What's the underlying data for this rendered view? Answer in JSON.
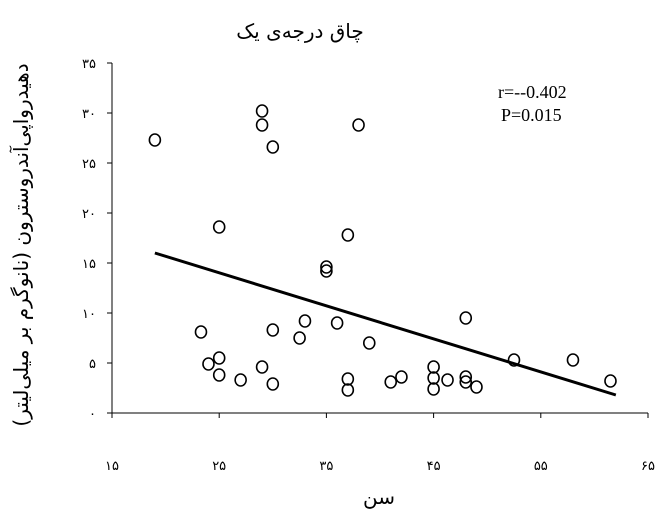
{
  "chart_data": {
    "type": "scatter",
    "title": "چاق درجه‌ی یک",
    "xlabel": "سن",
    "ylabel": "دهیدرواپی‌آندروسترون (نانوگرم بر میلی‌لیتر)",
    "xlim": [
      15,
      65
    ],
    "ylim": [
      0,
      35
    ],
    "x_ticks": [
      "۱۵",
      "۲۵",
      "۳۵",
      "۴۵",
      "۵۵",
      "۶۵"
    ],
    "x_tick_values": [
      15,
      25,
      35,
      45,
      55,
      65
    ],
    "y_ticks": [
      "۰",
      "۵",
      "۱۰",
      "۱۵",
      "۲۰",
      "۲۵",
      "۳۰",
      "۳۵"
    ],
    "y_tick_values": [
      0,
      5,
      10,
      15,
      20,
      25,
      30,
      35
    ],
    "annotations": {
      "r": "r=--0.402",
      "p": "P=0.015"
    },
    "points": [
      {
        "x": 19,
        "y": 27.3
      },
      {
        "x": 23.3,
        "y": 8.1
      },
      {
        "x": 24,
        "y": 4.9
      },
      {
        "x": 25,
        "y": 5.5
      },
      {
        "x": 25,
        "y": 3.8
      },
      {
        "x": 25,
        "y": 18.6
      },
      {
        "x": 27,
        "y": 3.3
      },
      {
        "x": 29,
        "y": 4.6
      },
      {
        "x": 29,
        "y": 30.2
      },
      {
        "x": 29,
        "y": 28.8
      },
      {
        "x": 30,
        "y": 26.6
      },
      {
        "x": 30,
        "y": 8.3
      },
      {
        "x": 30,
        "y": 2.9
      },
      {
        "x": 32.5,
        "y": 7.5
      },
      {
        "x": 33,
        "y": 9.2
      },
      {
        "x": 35,
        "y": 14.2
      },
      {
        "x": 35,
        "y": 14.6
      },
      {
        "x": 36,
        "y": 9.0
      },
      {
        "x": 37,
        "y": 3.4
      },
      {
        "x": 37,
        "y": 2.3
      },
      {
        "x": 37,
        "y": 17.8
      },
      {
        "x": 38,
        "y": 28.8
      },
      {
        "x": 39,
        "y": 7.0
      },
      {
        "x": 41,
        "y": 3.1
      },
      {
        "x": 42,
        "y": 3.6
      },
      {
        "x": 45,
        "y": 2.4
      },
      {
        "x": 45,
        "y": 3.5
      },
      {
        "x": 45,
        "y": 4.6
      },
      {
        "x": 46.3,
        "y": 3.3
      },
      {
        "x": 48,
        "y": 3.1
      },
      {
        "x": 48,
        "y": 3.6
      },
      {
        "x": 48,
        "y": 9.5
      },
      {
        "x": 49,
        "y": 2.6
      },
      {
        "x": 52.5,
        "y": 5.3
      },
      {
        "x": 58,
        "y": 5.3
      },
      {
        "x": 61.5,
        "y": 3.2
      }
    ],
    "trendline": {
      "x": [
        19,
        62
      ],
      "y": [
        16.0,
        1.8
      ]
    },
    "grid": false,
    "legend": "none"
  }
}
